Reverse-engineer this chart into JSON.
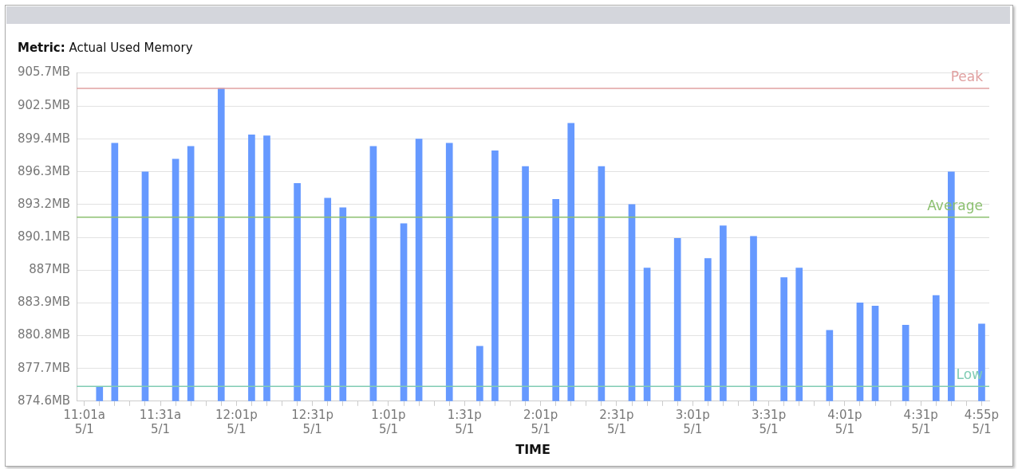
{
  "chart_data": {
    "type": "bar",
    "title": "Metric: Actual Used Memory",
    "xlabel": "TIME",
    "categories": [
      "11:01a 5/1",
      null,
      null,
      null,
      null,
      "11:31a 5/1",
      null,
      null,
      null,
      null,
      "12:01p 5/1",
      null,
      null,
      null,
      null,
      "12:31p 5/1",
      null,
      null,
      null,
      null,
      "1:01p 5/1",
      null,
      null,
      null,
      null,
      "1:31p 5/1",
      null,
      null,
      null,
      null,
      "2:01p 5/1",
      null,
      null,
      null,
      null,
      "2:31p 5/1",
      null,
      null,
      null,
      null,
      "3:01p 5/1",
      null,
      null,
      null,
      null,
      "3:31p 5/1",
      null,
      null,
      null,
      null,
      "4:01p 5/1",
      null,
      null,
      null,
      null,
      "4:31p 5/1",
      null,
      null,
      null,
      "4:55p 5/1"
    ],
    "values": [
      null,
      876.0,
      899.0,
      null,
      896.3,
      null,
      897.5,
      898.7,
      null,
      904.2,
      null,
      899.8,
      899.7,
      null,
      895.2,
      null,
      893.8,
      892.9,
      null,
      898.7,
      null,
      891.4,
      899.4,
      null,
      899.0,
      null,
      879.8,
      898.3,
      null,
      896.8,
      null,
      893.7,
      900.9,
      null,
      896.8,
      null,
      893.2,
      887.2,
      null,
      890.0,
      null,
      888.1,
      891.2,
      null,
      890.2,
      null,
      886.3,
      887.2,
      null,
      881.3,
      null,
      883.9,
      883.6,
      null,
      881.8,
      null,
      884.6,
      896.3,
      null,
      881.9
    ],
    "color": "#6699ff",
    "ylim": [
      874.6,
      905.7
    ],
    "yticks": [
      {
        "value": 874.6,
        "label": "874.6MB"
      },
      {
        "value": 877.7,
        "label": "877.7MB"
      },
      {
        "value": 880.8,
        "label": "880.8MB"
      },
      {
        "value": 883.9,
        "label": "883.9MB"
      },
      {
        "value": 887,
        "label": "887MB"
      },
      {
        "value": 890.1,
        "label": "890.1MB"
      },
      {
        "value": 893.2,
        "label": "893.2MB"
      },
      {
        "value": 896.3,
        "label": "896.3MB"
      },
      {
        "value": 899.4,
        "label": "899.4MB"
      },
      {
        "value": 902.5,
        "label": "902.5MB"
      },
      {
        "value": 905.7,
        "label": "905.7MB"
      }
    ],
    "grid": "y",
    "ref_lines": [
      {
        "axis": "y",
        "value": 904.2,
        "label": "Peak",
        "color": "#e0a0a0"
      },
      {
        "axis": "y",
        "value": 892.0,
        "label": "Average",
        "color": "#8cc070"
      },
      {
        "axis": "y",
        "value": 876.0,
        "label": "Low",
        "color": "#80ccb4"
      }
    ]
  }
}
